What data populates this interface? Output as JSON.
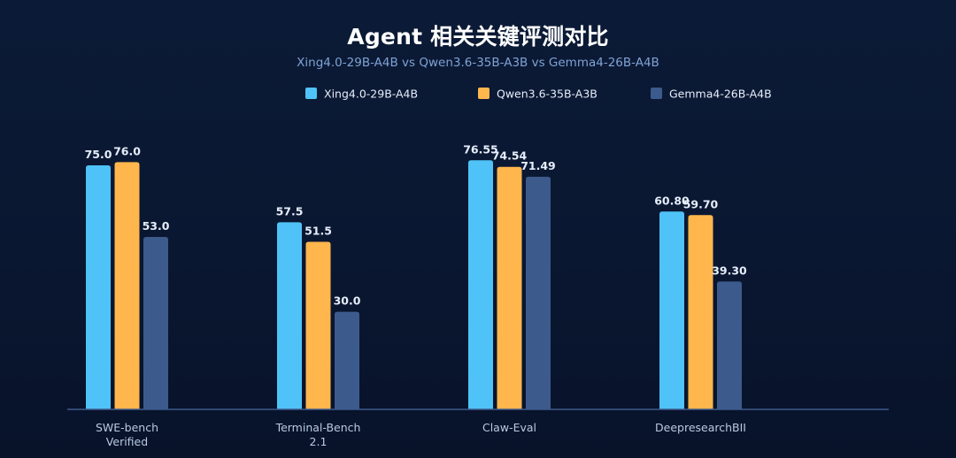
{
  "chart_data": {
    "type": "bar",
    "title": "Agent 相关关键评测对比",
    "subtitle": "Xing4.0-29B-A4B vs Qwen3.6-35B-A3B vs Gemma4-26B-A4B",
    "categories": [
      [
        "SWE-bench",
        "Verified"
      ],
      [
        "Terminal-Bench",
        "2.1"
      ],
      [
        "Claw-Eval"
      ],
      [
        "DeepresearchBII"
      ]
    ],
    "series": [
      {
        "name": "Xing4.0-29B-A4B",
        "color": "#4fc3f7",
        "values": [
          75.0,
          57.5,
          76.55,
          60.8
        ],
        "labels": [
          "75.0",
          "57.5",
          "76.55",
          "60.80"
        ]
      },
      {
        "name": "Qwen3.6-35B-A3B",
        "color": "#ffb74d",
        "values": [
          76.0,
          51.5,
          74.54,
          59.7
        ],
        "labels": [
          "76.0",
          "51.5",
          "74.54",
          "59.70"
        ]
      },
      {
        "name": "Gemma4-26B-A4B",
        "color": "#3d5a8c",
        "values": [
          53.0,
          30.0,
          71.49,
          39.3
        ],
        "labels": [
          "53.0",
          "30.0",
          "71.49",
          "39.30"
        ]
      }
    ],
    "ylim": [
      0,
      80
    ],
    "grid": false,
    "legend_position": "top-center",
    "axis_color": "#3d5a8c"
  }
}
